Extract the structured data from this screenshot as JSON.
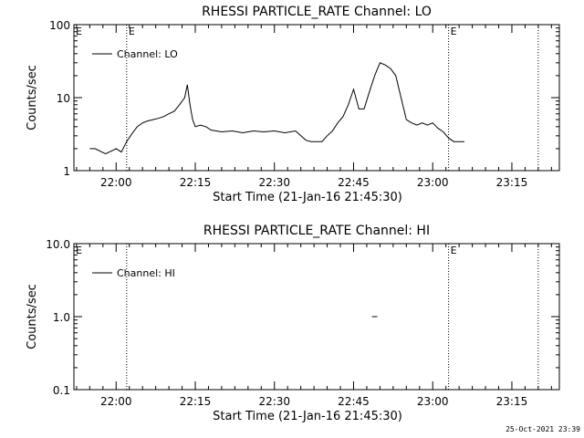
{
  "footer": {
    "timestamp": "25-Oct-2021 23:39"
  },
  "chart_data": [
    {
      "type": "line",
      "title": "RHESSI PARTICLE_RATE Channel: LO",
      "xlabel": "Start Time (21-Jan-16 21:45:30)",
      "ylabel": "Counts/sec",
      "yscale": "log",
      "ylim": [
        1,
        100
      ],
      "xlim": [
        "21:52",
        "23:24"
      ],
      "xticks": [
        "22:00",
        "22:15",
        "22:30",
        "22:45",
        "23:00",
        "23:15"
      ],
      "yticks": [
        "1",
        "10",
        "100"
      ],
      "legend": {
        "label": "Channel: LO",
        "position": "top-left"
      },
      "vlines": [
        {
          "x": "22:02",
          "label": "E"
        },
        {
          "x": "23:03",
          "label": "E"
        },
        {
          "x": "23:20",
          "label": ""
        }
      ],
      "corner_label": "E",
      "series": [
        {
          "x": [
            "21:55",
            "21:56",
            "21:58",
            "22:00",
            "22:01",
            "22:02",
            "22:03",
            "22:04",
            "22:05",
            "22:06",
            "22:07",
            "22:08",
            "22:09",
            "22:10",
            "22:11",
            "22:12",
            "22:13",
            "22:13.5",
            "22:14",
            "22:14.5",
            "22:15",
            "22:16",
            "22:17",
            "22:18",
            "22:20",
            "22:22",
            "22:24",
            "22:26",
            "22:28",
            "22:30",
            "22:32",
            "22:34",
            "22:36",
            "22:37",
            "22:38",
            "22:39",
            "22:40",
            "22:41",
            "22:42",
            "22:43",
            "22:44",
            "22:45",
            "22:46",
            "22:47",
            "22:48",
            "22:49",
            "22:50",
            "22:51",
            "22:52",
            "22:53",
            "22:54",
            "22:55",
            "22:56",
            "22:57",
            "22:58",
            "22:59",
            "23:00",
            "23:01",
            "23:02",
            "23:03",
            "23:04",
            "23:05",
            "23:06"
          ],
          "y": [
            2,
            2,
            1.7,
            2,
            1.8,
            2.5,
            3.2,
            4,
            4.5,
            4.8,
            5,
            5.2,
            5.5,
            6,
            6.5,
            8,
            10,
            15,
            8,
            5,
            4,
            4.2,
            4,
            3.6,
            3.4,
            3.5,
            3.3,
            3.5,
            3.4,
            3.5,
            3.3,
            3.5,
            2.6,
            2.5,
            2.5,
            2.5,
            3,
            3.5,
            4.5,
            5.5,
            8,
            13,
            7,
            7,
            12,
            20,
            30,
            28,
            25,
            20,
            10,
            5,
            4.5,
            4.2,
            4.5,
            4.2,
            4.5,
            3.8,
            3.4,
            2.8,
            2.5,
            2.5,
            2.5
          ]
        }
      ]
    },
    {
      "type": "line",
      "title": "RHESSI PARTICLE_RATE Channel: HI",
      "xlabel": "Start Time (21-Jan-16 21:45:30)",
      "ylabel": "Counts/sec",
      "yscale": "log",
      "ylim": [
        0.1,
        10
      ],
      "xlim": [
        "21:52",
        "23:24"
      ],
      "xticks": [
        "22:00",
        "22:15",
        "22:30",
        "22:45",
        "23:00",
        "23:15"
      ],
      "yticks": [
        "0.1",
        "1.0",
        "10.0"
      ],
      "legend": {
        "label": "Channel: HI",
        "position": "top-left"
      },
      "vlines": [
        {
          "x": "22:02",
          "label": ""
        },
        {
          "x": "23:03",
          "label": "E"
        },
        {
          "x": "23:20",
          "label": ""
        }
      ],
      "corner_label": "E",
      "series": [
        {
          "x": [
            "22:48.5",
            "22:49.5"
          ],
          "y": [
            1,
            1
          ]
        }
      ]
    }
  ]
}
